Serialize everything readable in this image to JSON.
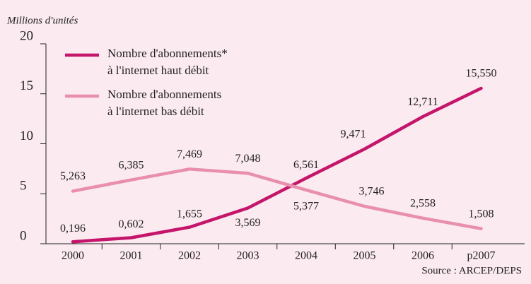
{
  "chart_data": {
    "type": "line",
    "y_label": "Millions d'unités",
    "source": "Source : ARCEP/DEPS",
    "categories": [
      "2000",
      "2001",
      "2002",
      "2003",
      "2004",
      "2005",
      "2006",
      "p2007"
    ],
    "series": [
      {
        "name": "Nombre d'abonnements*\nà l'internet haut débit",
        "color": "#c4156b",
        "values": [
          0.196,
          0.602,
          1.655,
          3.569,
          6.561,
          9.471,
          12.711,
          15.55
        ],
        "value_labels": [
          "0,196",
          "0,602",
          "1,655",
          "3,569",
          "6,561",
          "9,471",
          "12,711",
          "15,550"
        ]
      },
      {
        "name": "Nombre d'abonnements\nà l'internet bas débit",
        "color": "#e98fae",
        "values": [
          5.263,
          6.385,
          7.469,
          7.048,
          5.377,
          3.746,
          2.558,
          1.508
        ],
        "value_labels": [
          "5,263",
          "6,385",
          "7,469",
          "7,048",
          "5,377",
          "3,746",
          "2,558",
          "1,508"
        ]
      }
    ],
    "ylim": [
      0,
      20
    ],
    "yticks": [
      0,
      5,
      10,
      15,
      20
    ],
    "legend": "upper-left"
  }
}
